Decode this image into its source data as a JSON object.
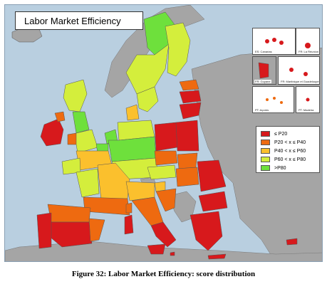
{
  "map": {
    "title": "Labor Market Efficiency",
    "legend": [
      {
        "label": "≤ P20",
        "color": "#d7191c"
      },
      {
        "label": "P20 < x ≤ P40",
        "color": "#ee6a10"
      },
      {
        "label": "P40 < x ≤ P60",
        "color": "#fbc02d"
      },
      {
        "label": "P60 < x ≤ P80",
        "color": "#d4ee3c"
      },
      {
        "label": ">P80",
        "color": "#6ee03c"
      }
    ],
    "colors": {
      "sea": "#b9cfe0",
      "non_eu": "#a5a5a5",
      "border": "#555555"
    },
    "insets": [
      {
        "label": "ES: Canarias"
      },
      {
        "label": "FR: La Réunion"
      },
      {
        "label": "FR: Guyane"
      },
      {
        "label": "FR: Martinique et Guadeloupe"
      },
      {
        "label": "PT: Açores"
      },
      {
        "label": "PT: Madeira"
      }
    ]
  },
  "caption": "Figure 32: Labor Market Efficiency: score distribution"
}
